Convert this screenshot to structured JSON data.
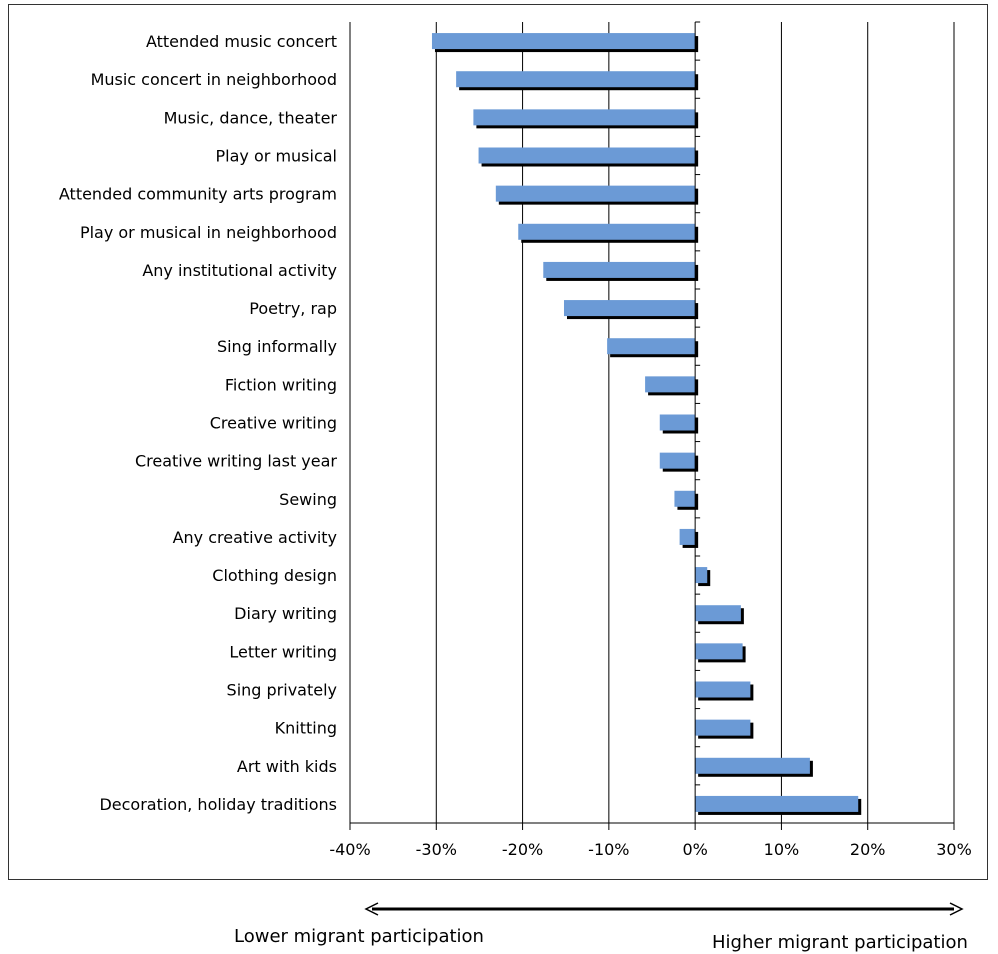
{
  "chart_data": {
    "type": "bar",
    "orientation": "horizontal",
    "categories": [
      "Attended music concert",
      "Music concert in neighborhood",
      "Music, dance, theater",
      "Play or musical",
      "Attended community arts program",
      "Play or musical in neighborhood",
      "Any institutional activity",
      "Poetry, rap",
      "Sing informally",
      "Fiction writing",
      "Creative writing",
      "Creative writing last year",
      "Sewing",
      "Any creative activity",
      "Clothing design",
      "Diary writing",
      "Letter writing",
      "Sing privately",
      "Knitting",
      "Art with kids",
      "Decoration, holiday traditions"
    ],
    "values": [
      -30.5,
      -27.7,
      -25.7,
      -25.1,
      -23.1,
      -20.5,
      -17.6,
      -15.2,
      -10.2,
      -5.8,
      -4.1,
      -4.1,
      -2.4,
      -1.8,
      1.4,
      5.3,
      5.5,
      6.4,
      6.4,
      13.3,
      18.9
    ],
    "xlim": [
      -40,
      30
    ],
    "xticks": [
      -40,
      -30,
      -20,
      -10,
      0,
      10,
      20,
      30
    ],
    "tick_labels": [
      "-40%",
      "-30%",
      "-20%",
      "-10%",
      "0%",
      "10%",
      "20%",
      "30%"
    ],
    "grid": "vertical",
    "bar_color": "#6b9ad6",
    "shadow_color": "#000000",
    "annotations": {
      "left": "Lower migrant participation",
      "right": "Higher migrant participation"
    }
  }
}
